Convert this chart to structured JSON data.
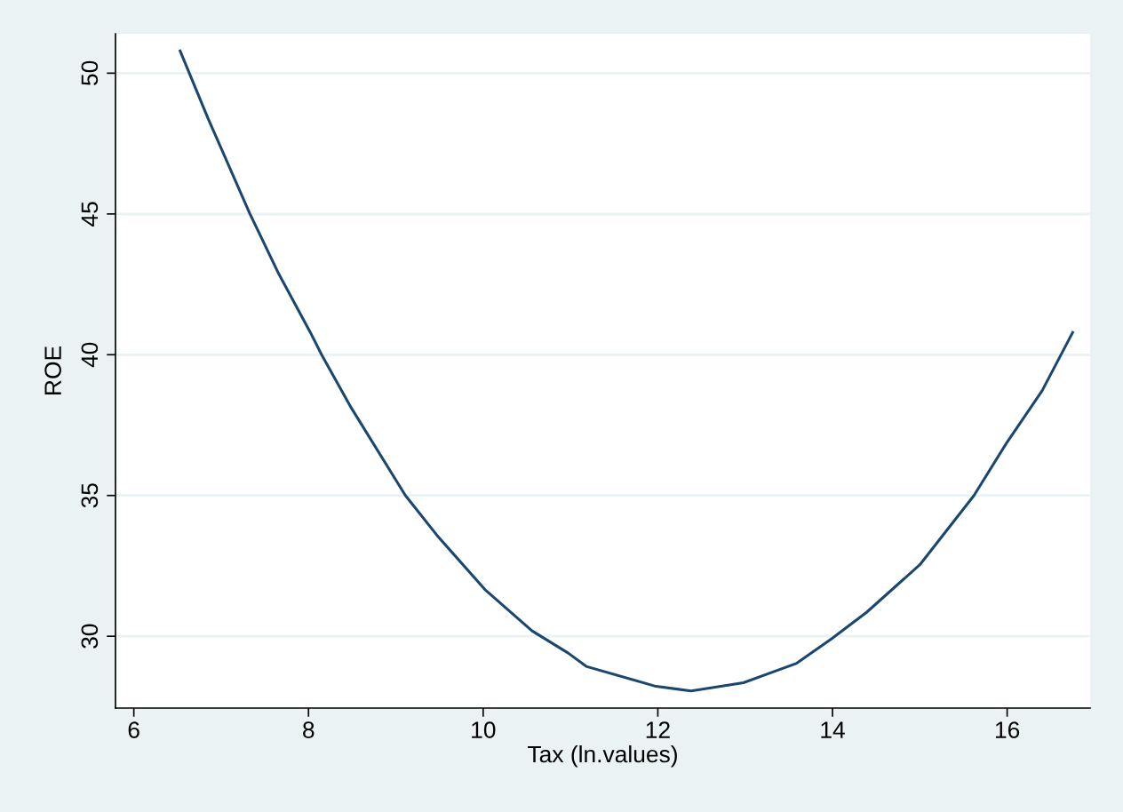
{
  "chart_data": {
    "type": "line",
    "xlabel": "Tax (ln.values)",
    "ylabel": "ROE",
    "x": [
      6.53,
      6.85,
      7.33,
      7.65,
      8.02,
      8.15,
      8.49,
      9.11,
      9.47,
      10.02,
      10.56,
      10.97,
      11.18,
      11.98,
      12.38,
      12.98,
      13.59,
      13.99,
      14.39,
      15.0,
      15.62,
      15.99,
      16.4,
      16.75
    ],
    "series": [
      {
        "color": "#1a476f",
        "values": [
          50.79,
          48.39,
          45.0,
          42.93,
          40.8,
          40.0,
          38.11,
          35.0,
          33.59,
          31.66,
          30.19,
          29.41,
          28.93,
          28.22,
          28.06,
          28.35,
          29.04,
          29.91,
          30.85,
          32.54,
          35.0,
          36.85,
          38.72,
          40.79
        ]
      }
    ],
    "xlim": [
      5.79,
      16.95
    ],
    "ylim": [
      27.45,
      51.4
    ],
    "xticks": [
      6,
      8,
      10,
      12,
      14,
      16
    ],
    "yticks": [
      30,
      35,
      40,
      45,
      50
    ],
    "grid": "y",
    "legend": false,
    "marker": "none",
    "line_style": "solid"
  }
}
